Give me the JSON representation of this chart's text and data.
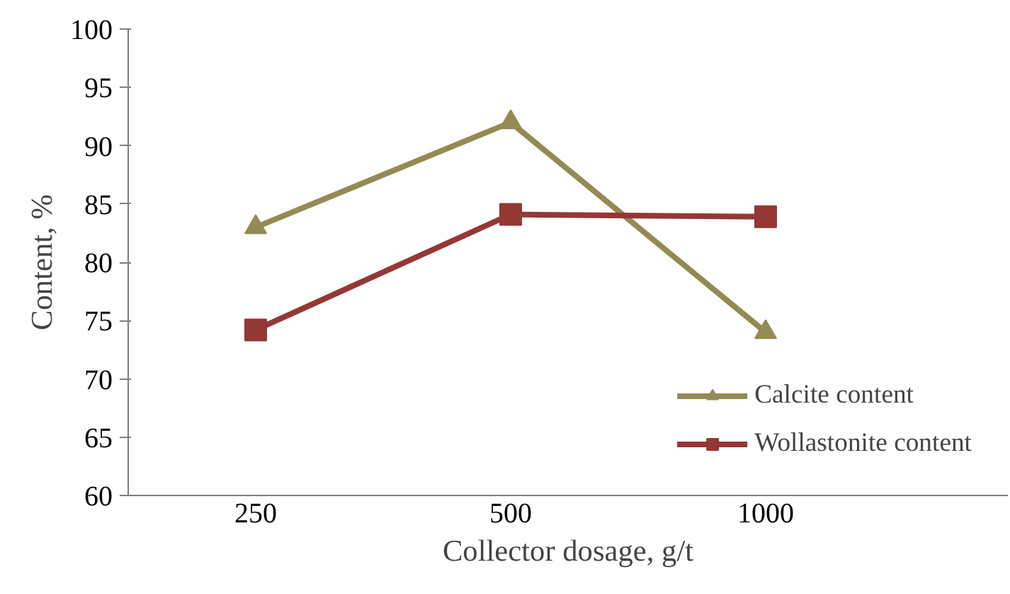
{
  "chart_data": {
    "type": "line",
    "xlabel": "Collector dosage, g/t",
    "ylabel": "Content, %",
    "categories": [
      "250",
      "500",
      "1000"
    ],
    "series": [
      {
        "name": "Calcite content",
        "color": "#948a54",
        "marker": "triangle",
        "values": [
          83,
          92,
          74
        ]
      },
      {
        "name": "Wollastonite content",
        "color": "#953735",
        "marker": "square",
        "values": [
          74.2,
          84.1,
          83.9
        ]
      }
    ],
    "ylim": [
      60,
      100
    ],
    "yticks": [
      60,
      65,
      70,
      75,
      80,
      85,
      90,
      95,
      100
    ],
    "grid": false,
    "legend": "bottom right",
    "line_style": "solid"
  }
}
